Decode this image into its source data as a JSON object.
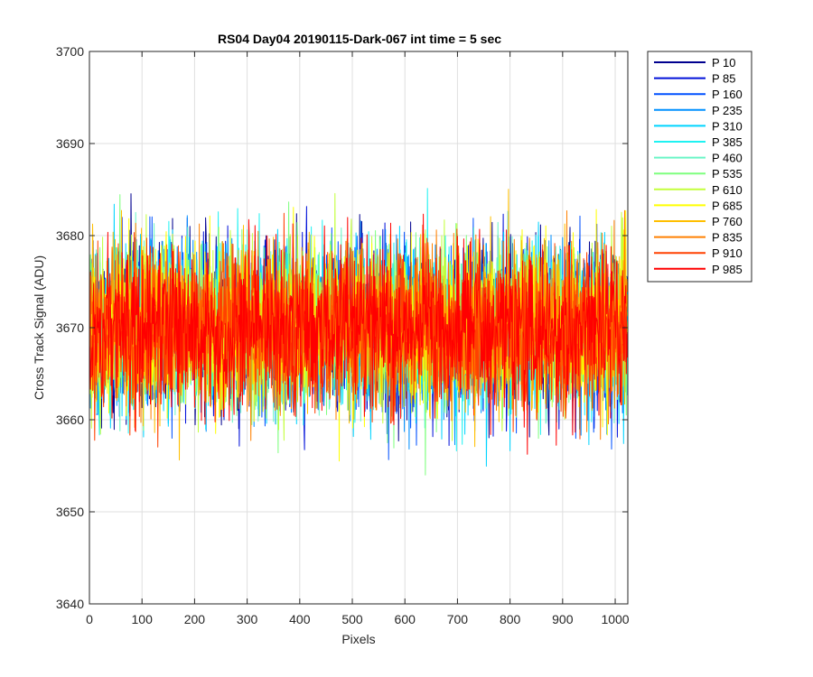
{
  "chart_data": {
    "type": "line",
    "title": "RS04 Day04 20190115-Dark-067 int time = 5 sec",
    "xlabel": "Pixels",
    "ylabel": "Cross Track Signal (ADU)",
    "xlim": [
      0,
      1024
    ],
    "ylim": [
      3640,
      3700
    ],
    "xticks": [
      0,
      100,
      200,
      300,
      400,
      500,
      600,
      700,
      800,
      900,
      1000
    ],
    "yticks": [
      3640,
      3650,
      3660,
      3670,
      3680,
      3690,
      3700
    ],
    "grid": true,
    "legend_location": "outside-top-right",
    "num_points_per_series": 1024,
    "noise_summary": {
      "mean": 3670,
      "typical_min": 3655,
      "typical_max": 3685
    },
    "series": [
      {
        "name": "P 10",
        "color": "#00008f"
      },
      {
        "name": "P 85",
        "color": "#0010d9"
      },
      {
        "name": "P 160",
        "color": "#0050ff"
      },
      {
        "name": "P 235",
        "color": "#0090ff"
      },
      {
        "name": "P 310",
        "color": "#00d4ff"
      },
      {
        "name": "P 385",
        "color": "#1ff2f2"
      },
      {
        "name": "P 460",
        "color": "#6af5c6"
      },
      {
        "name": "P 535",
        "color": "#7fff7f"
      },
      {
        "name": "P 610",
        "color": "#c3ff3c"
      },
      {
        "name": "P 685",
        "color": "#ffff00"
      },
      {
        "name": "P 760",
        "color": "#ffbf00"
      },
      {
        "name": "P 835",
        "color": "#ff8000"
      },
      {
        "name": "P 910",
        "color": "#ff4000"
      },
      {
        "name": "P 985",
        "color": "#ff0000"
      }
    ]
  }
}
